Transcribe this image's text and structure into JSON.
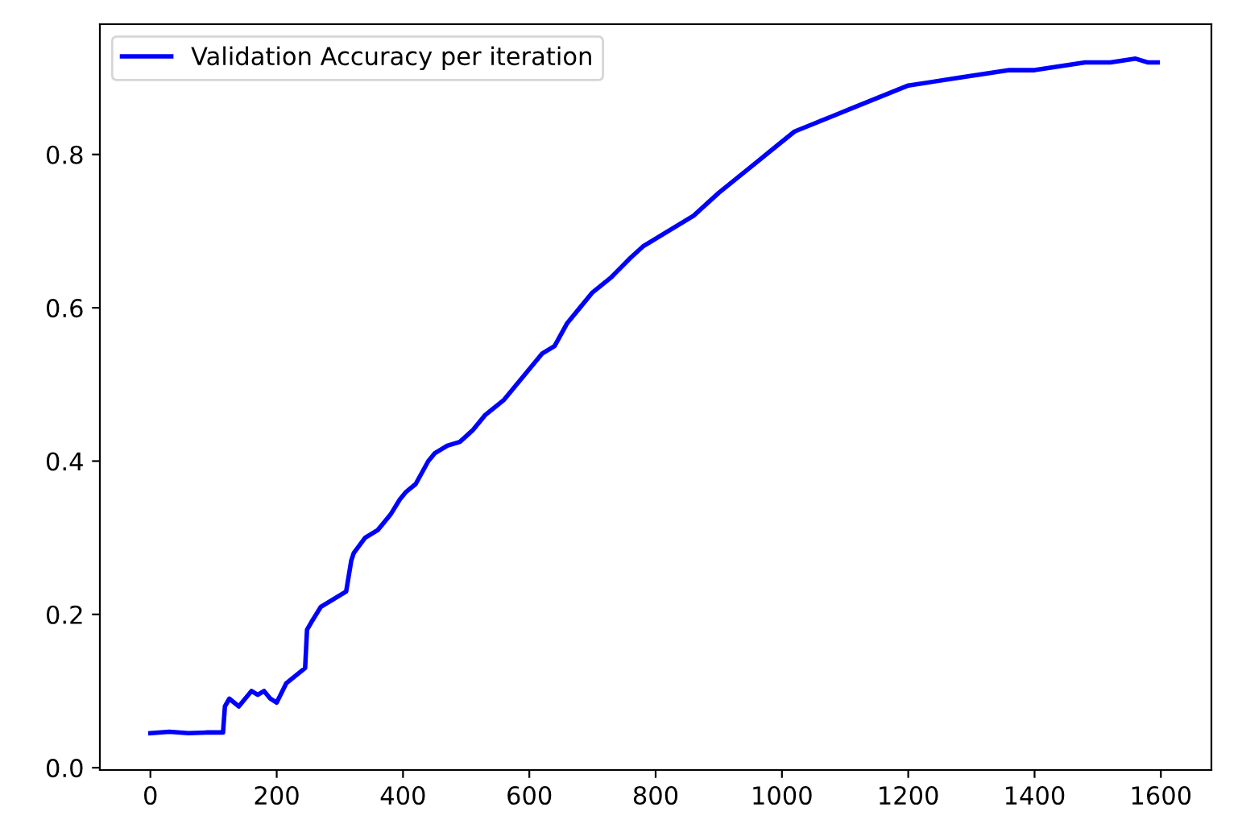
{
  "chart_data": {
    "type": "line",
    "x": [
      0,
      30,
      60,
      90,
      115,
      118,
      125,
      140,
      160,
      170,
      180,
      190,
      200,
      215,
      230,
      245,
      248,
      255,
      270,
      290,
      310,
      318,
      322,
      340,
      360,
      380,
      395,
      405,
      420,
      440,
      450,
      470,
      490,
      510,
      530,
      560,
      580,
      600,
      620,
      640,
      660,
      680,
      700,
      730,
      760,
      780,
      800,
      820,
      840,
      860,
      880,
      900,
      930,
      960,
      990,
      1020,
      1050,
      1080,
      1110,
      1140,
      1170,
      1200,
      1240,
      1280,
      1320,
      1360,
      1400,
      1440,
      1480,
      1520,
      1560,
      1580,
      1595
    ],
    "series": [
      {
        "name": "Validation Accuracy per iteration",
        "color": "#0000ff",
        "values": [
          0.045,
          0.047,
          0.045,
          0.046,
          0.046,
          0.08,
          0.09,
          0.08,
          0.1,
          0.095,
          0.1,
          0.09,
          0.085,
          0.11,
          0.12,
          0.13,
          0.18,
          0.19,
          0.21,
          0.22,
          0.23,
          0.27,
          0.28,
          0.3,
          0.31,
          0.33,
          0.35,
          0.36,
          0.37,
          0.4,
          0.41,
          0.42,
          0.425,
          0.44,
          0.46,
          0.48,
          0.5,
          0.52,
          0.54,
          0.55,
          0.58,
          0.6,
          0.62,
          0.64,
          0.665,
          0.68,
          0.69,
          0.7,
          0.71,
          0.72,
          0.735,
          0.75,
          0.77,
          0.79,
          0.81,
          0.83,
          0.84,
          0.85,
          0.86,
          0.87,
          0.88,
          0.89,
          0.895,
          0.9,
          0.905,
          0.91,
          0.91,
          0.915,
          0.92,
          0.92,
          0.925,
          0.92,
          0.92
        ]
      }
    ],
    "xlim": [
      -80,
      1680
    ],
    "ylim": [
      -0.003,
      0.97
    ],
    "xticks": [
      0,
      200,
      400,
      600,
      800,
      1000,
      1200,
      1400,
      1600
    ],
    "yticks": [
      {
        "value": 0,
        "label": "0.0"
      },
      {
        "value": 0.2,
        "label": "0.2"
      },
      {
        "value": 0.4,
        "label": "0.4"
      },
      {
        "value": 0.6,
        "label": "0.6"
      },
      {
        "value": 0.8,
        "label": "0.8"
      }
    ],
    "legend": "top left",
    "grid": false,
    "line_style": "solid",
    "marker": "none"
  }
}
